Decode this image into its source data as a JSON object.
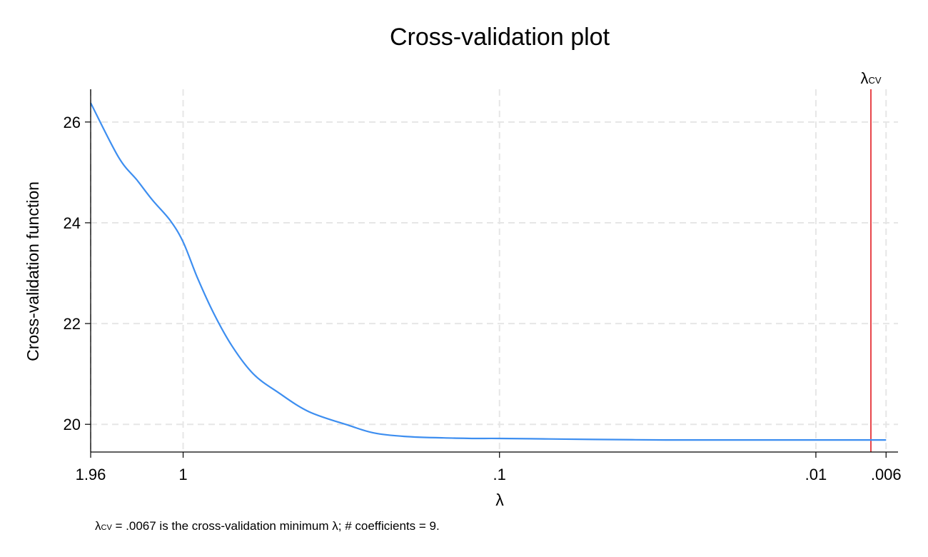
{
  "chart_data": {
    "type": "line",
    "title": "Cross-validation plot",
    "xlabel": "λ",
    "ylabel": "Cross-validation function",
    "x_scale": "log-reversed",
    "xlim": [
      1.96,
      0.0055
    ],
    "ylim": [
      19.45,
      26.65
    ],
    "x_ticks": [
      {
        "value": 1.96,
        "label": "1.96"
      },
      {
        "value": 1,
        "label": "1"
      },
      {
        "value": 0.1,
        "label": ".1"
      },
      {
        "value": 0.01,
        "label": ".01"
      },
      {
        "value": 0.006,
        "label": ".006"
      }
    ],
    "y_ticks": [
      {
        "value": 20,
        "label": "20"
      },
      {
        "value": 22,
        "label": "22"
      },
      {
        "value": 24,
        "label": "24"
      },
      {
        "value": 26,
        "label": "26"
      }
    ],
    "grid": true,
    "series": [
      {
        "color": "#3d8ef0",
        "x": [
          1.96,
          1.6,
          1.4,
          1.25,
          1.1,
          1.0,
          0.9,
          0.8,
          0.7,
          0.6,
          0.5,
          0.4,
          0.3,
          0.25,
          0.2,
          0.15,
          0.12,
          0.1,
          0.07,
          0.05,
          0.03,
          0.02,
          0.01,
          0.008,
          0.0067,
          0.006
        ],
        "y": [
          26.38,
          25.3,
          24.85,
          24.45,
          24.05,
          23.62,
          22.9,
          22.2,
          21.55,
          21.0,
          20.63,
          20.25,
          19.98,
          19.83,
          19.76,
          19.73,
          19.72,
          19.72,
          19.71,
          19.7,
          19.69,
          19.69,
          19.69,
          19.69,
          19.69,
          19.69
        ]
      }
    ],
    "reference_line": {
      "x": 0.0067,
      "label": "λCV",
      "label_main": "λ",
      "label_sub": "CV",
      "color": "#e8464a"
    },
    "note": {
      "lambda": "λ",
      "sub": "CV",
      "text": " = .0067 is the cross-validation minimum λ; # coefficients = 9."
    }
  }
}
